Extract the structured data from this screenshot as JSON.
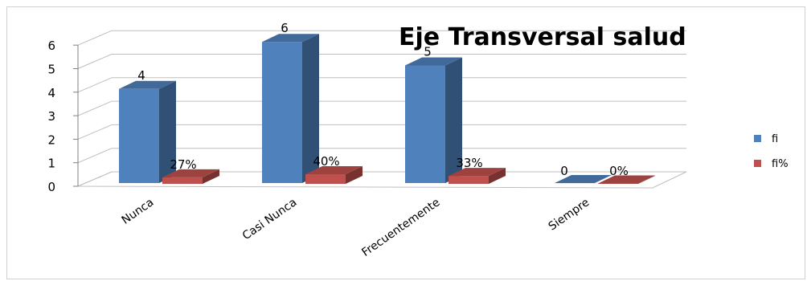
{
  "chart_data": {
    "type": "bar",
    "title": "Eje Transversal salud",
    "categories": [
      "Nunca",
      "Casi Nunca",
      "Frecuentemente",
      "Siempre"
    ],
    "series": [
      {
        "name": "fi",
        "values": [
          4,
          6,
          5,
          0
        ],
        "labels": [
          "4",
          "6",
          "5",
          "0"
        ],
        "color": "#4f81bd"
      },
      {
        "name": "fi%",
        "values": [
          0.27,
          0.4,
          0.33,
          0.0
        ],
        "labels": [
          "27%",
          "40%",
          "33%",
          "0%"
        ],
        "color": "#c0504d"
      }
    ],
    "ylim": [
      0,
      6
    ],
    "yticks": [
      0,
      1,
      2,
      3,
      4,
      5,
      6
    ],
    "grid": true,
    "legend": "right",
    "style": "3d-column"
  }
}
